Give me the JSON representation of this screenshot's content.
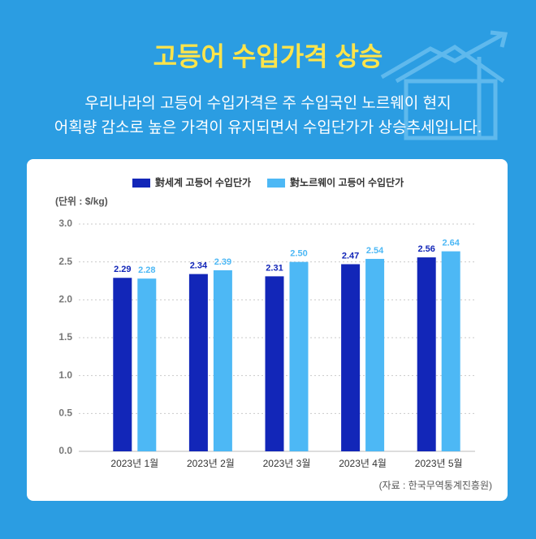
{
  "chart_data": {
    "type": "bar",
    "title": "고등어 수입가격 상승",
    "subtitle": [
      "우리나라의 고등어 수입가격은 주 수입국인 노르웨이 현지",
      "어획량 감소로 높은 가격이 유지되면서 수입단가가 상승추세입니다."
    ],
    "y_label": "(단위 : $/kg)",
    "source": "(자료 : 한국무역통계진흥원)",
    "categories": [
      "2023년 1월",
      "2023년 2월",
      "2023년 3월",
      "2023년 4월",
      "2023년 5월"
    ],
    "series": [
      {
        "name": "對세계 고등어 수입단가",
        "color": "#1226b8",
        "values": [
          2.29,
          2.34,
          2.31,
          2.47,
          2.56
        ],
        "value_labels": [
          "2.29",
          "2.34",
          "2.31",
          "2.47",
          "2.56"
        ]
      },
      {
        "name": "對노르웨이 고등어 수입단가",
        "color": "#4db8f5",
        "values": [
          2.28,
          2.39,
          2.5,
          2.54,
          2.64
        ],
        "value_labels": [
          "2.28",
          "2.39",
          "2.50",
          "2.54",
          "2.64"
        ]
      }
    ],
    "ylim": [
      0,
      3
    ],
    "yticks": [
      {
        "value": 0,
        "label": "0.0"
      },
      {
        "value": 0.5,
        "label": "0.5"
      },
      {
        "value": 1,
        "label": "1.0"
      },
      {
        "value": 1.5,
        "label": "1.5"
      },
      {
        "value": 2,
        "label": "2.0"
      },
      {
        "value": 2.5,
        "label": "2.5"
      },
      {
        "value": 3,
        "label": "3.0"
      }
    ],
    "grid": true
  }
}
